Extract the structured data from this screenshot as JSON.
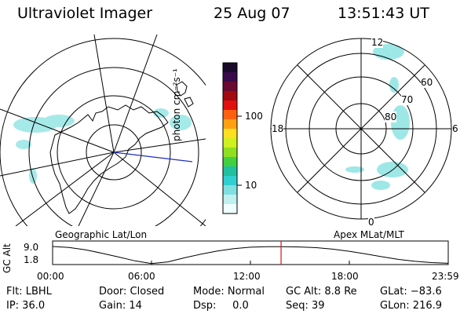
{
  "header": {
    "title": "Ultraviolet Imager",
    "date": "25 Aug 07",
    "time": "13:51:43 UT"
  },
  "left_map": {
    "label": "Geographic Lat/Lon"
  },
  "right_map": {
    "label": "Apex MLat/MLT",
    "mlt_labels": {
      "top": "12",
      "bottom": "0",
      "left": "18",
      "right": "6"
    },
    "lat_labels": [
      "60",
      "70",
      "80"
    ]
  },
  "colorbar": {
    "unit": "photon cm⁻²s⁻¹",
    "ticks": [
      "100",
      "10"
    ],
    "colors": [
      "#1a0a2a",
      "#3a0a4a",
      "#6a0a30",
      "#a00a10",
      "#e01010",
      "#ff6010",
      "#ffa010",
      "#ffe020",
      "#d0f020",
      "#90e020",
      "#40d040",
      "#20c0a0",
      "#30d0d0",
      "#80e0e0",
      "#c0f0f0",
      "#f0ffff"
    ]
  },
  "altitude_plot": {
    "ylabel": "GC Alt",
    "yticks": [
      "9.0",
      "1.8"
    ],
    "xticks": [
      "00:00",
      "06:00",
      "12:00",
      "18:00",
      "23:59"
    ],
    "current_time_marker_hours": 13.86,
    "chart_data": {
      "type": "line",
      "x": [
        0,
        1,
        2,
        3,
        4,
        5,
        6,
        7,
        8,
        9,
        10,
        11,
        12,
        13,
        14,
        15,
        16,
        17,
        18,
        19,
        20,
        21,
        22,
        23,
        24
      ],
      "y": [
        9.0,
        8.6,
        7.6,
        6.2,
        4.6,
        3.0,
        1.9,
        2.6,
        4.3,
        5.8,
        7.1,
        8.1,
        8.7,
        8.9,
        8.9,
        8.8,
        8.5,
        7.9,
        7.0,
        5.9,
        4.7,
        3.6,
        2.8,
        2.3,
        2.0
      ]
    }
  },
  "info": {
    "flt": "Flt: LBHL",
    "ip": "IP: 36.0",
    "door": "Door: Closed",
    "gain": "Gain: 14",
    "mode": "Mode: Normal",
    "dsp": "Dsp:     0.0",
    "gcalt": "GC Alt: 8.8 Re",
    "seq": "Seq: 39",
    "glat": "GLat: −83.6",
    "glon": "GLon: 216.9"
  }
}
